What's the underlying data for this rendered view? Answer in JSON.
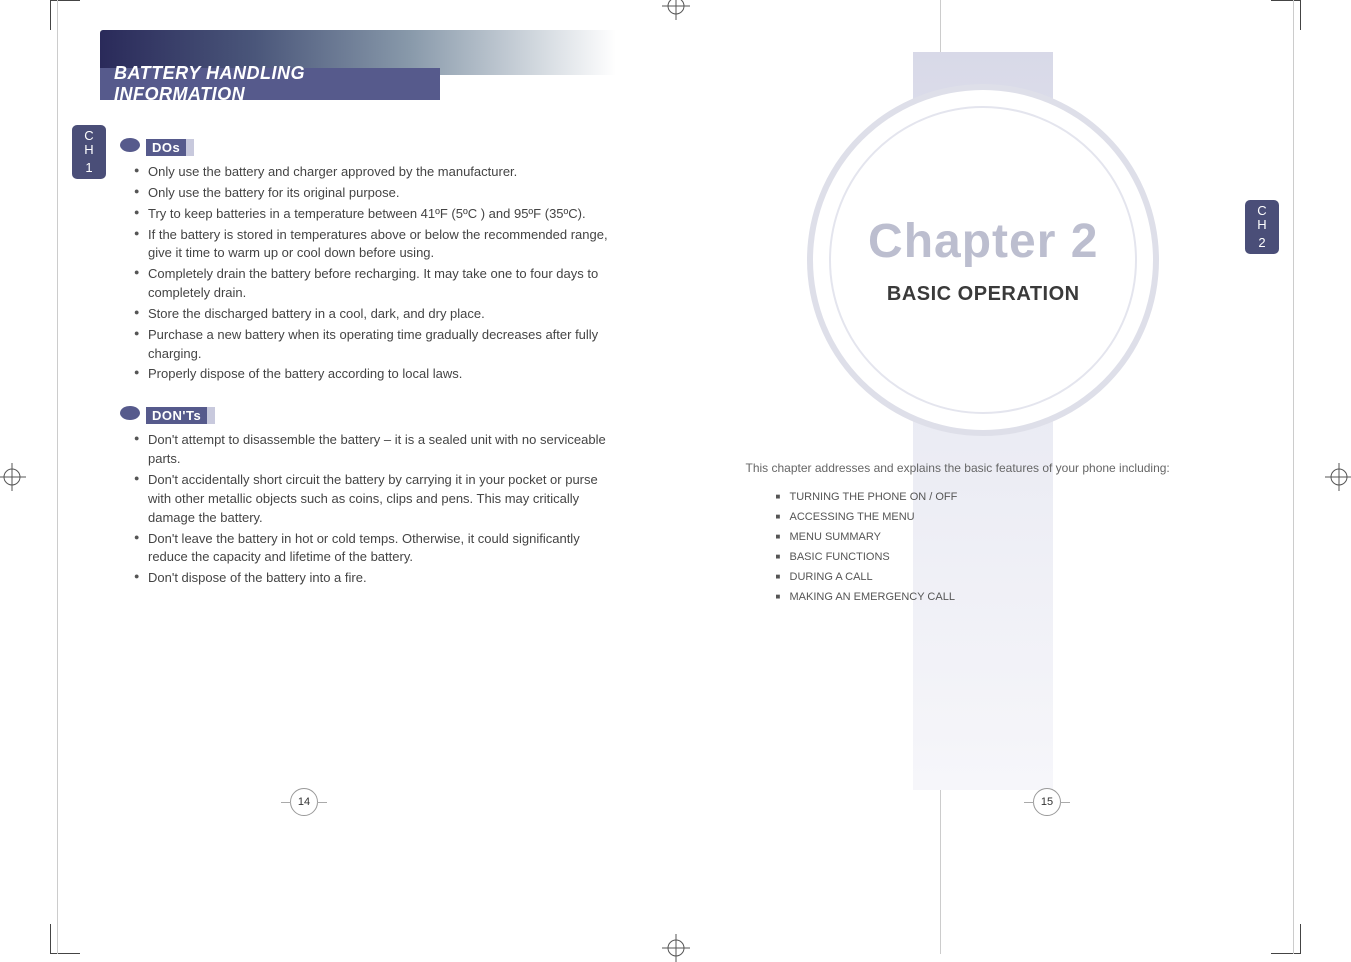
{
  "colors": {
    "header_band": "#565a8c",
    "gradient_dark": "#2a2a5a",
    "tab_bg": "#4a4e78",
    "body_text": "#444444",
    "chapter_number": "#bcbecf",
    "chapter_ring": "#dedfe9",
    "toc_text": "#555555",
    "page_bg": "#ffffff"
  },
  "typography": {
    "header_title_fontsize": 18,
    "body_fontsize": 13,
    "chapter_number_fontsize": 48,
    "chapter_subtitle_fontsize": 20,
    "toc_fontsize": 11
  },
  "left_page": {
    "chapter_tab": {
      "letters": "C\nH",
      "number": "1"
    },
    "header_title": "BATTERY HANDLING INFORMATION",
    "dos_label": "DOs",
    "dos_items": [
      "Only use the battery and charger approved by the manufacturer.",
      "Only use the battery for its original purpose.",
      "Try to keep batteries in a temperature between 41ºF (5ºC ) and 95ºF (35ºC).",
      "If the battery is stored in temperatures above or below the recommended range, give it time to warm up or cool down before using.",
      "Completely drain the battery before recharging. It may take one to four days to completely drain.",
      "Store the discharged battery in a cool, dark, and dry place.",
      "Purchase a new battery when its operating time gradually decreases after fully charging.",
      "Properly dispose of the battery according to local laws."
    ],
    "donts_label": "DON'Ts",
    "donts_items": [
      "Don't attempt to disassemble the battery – it is a sealed unit with no serviceable parts.",
      "Don't accidentally short circuit the battery by carrying it in your pocket or purse with other metallic objects such as coins, clips and pens. This may critically damage the battery.",
      "Don't leave the battery in hot or cold temps. Otherwise, it could significantly reduce the capacity and lifetime of the battery.",
      "Don't dispose of the battery into a fire."
    ],
    "page_number": "14"
  },
  "right_page": {
    "chapter_tab": {
      "letters": "C\nH",
      "number": "2"
    },
    "chapter_number": "Chapter 2",
    "chapter_subtitle": "BASIC OPERATION",
    "intro": "This chapter addresses and explains the basic features of your phone including:",
    "toc": [
      "TURNING THE PHONE ON / OFF",
      "ACCESSING THE MENU",
      "MENU SUMMARY",
      "BASIC FUNCTIONS",
      "DURING A CALL",
      "MAKING AN EMERGENCY CALL"
    ],
    "page_number": "15"
  }
}
